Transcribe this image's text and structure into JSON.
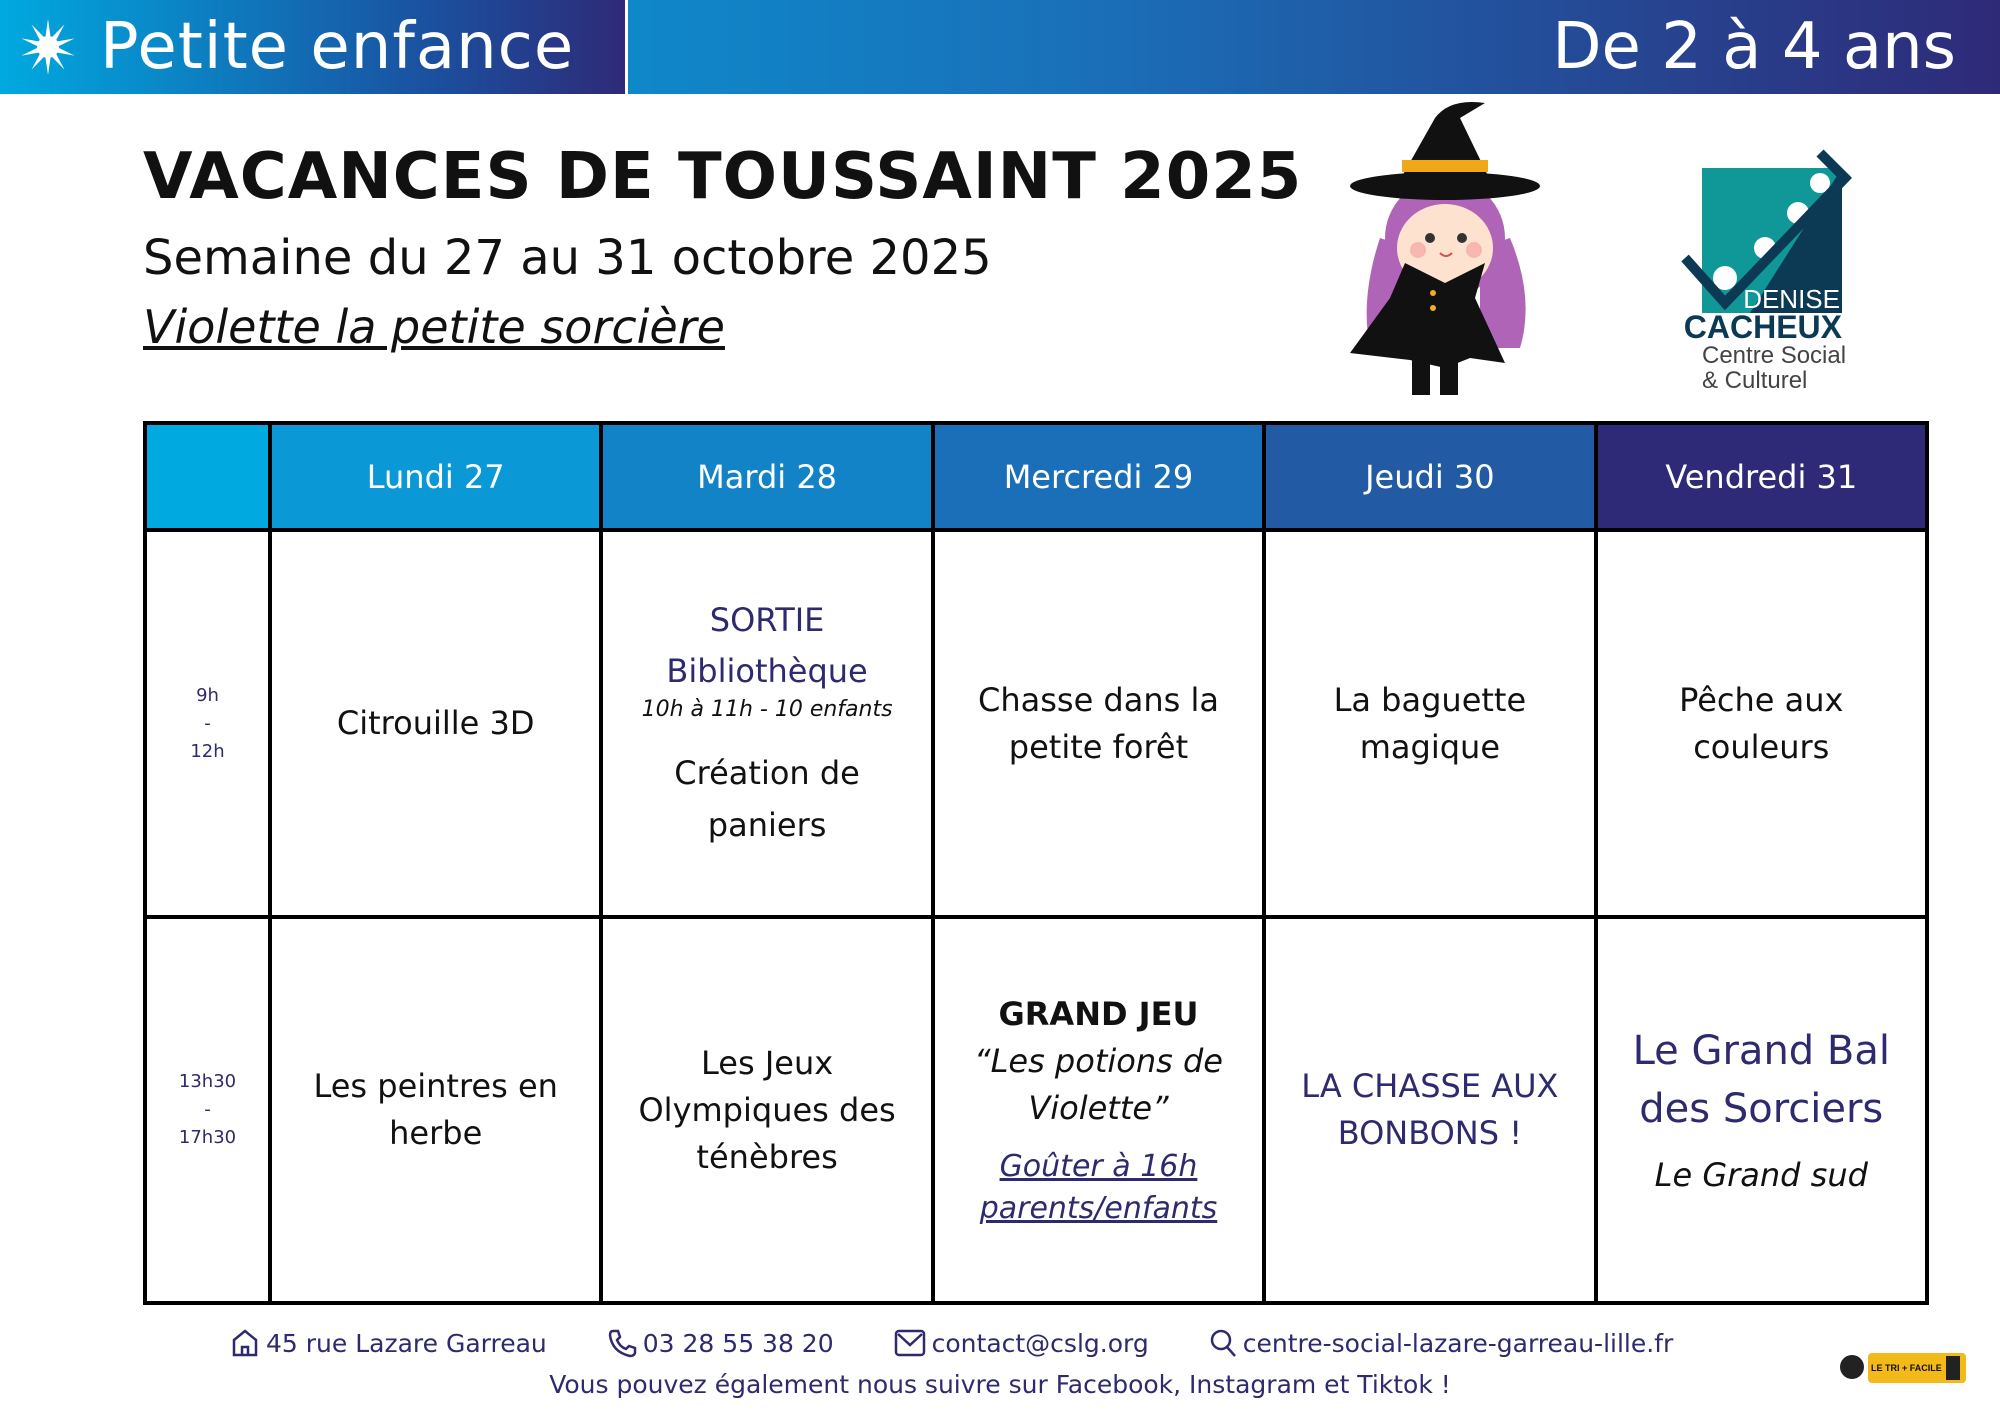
{
  "banner": {
    "left": "Petite enfance",
    "right": "De 2 à 4 ans",
    "icon": "star-icon",
    "colors": {
      "start": "#00a9e0",
      "end": "#2e2a78"
    }
  },
  "header": {
    "title": "VACANCES DE TOUSSAINT 2025",
    "subtitle": "Semaine du 27 au 31 octobre 2025",
    "theme": "Violette la petite sorcière"
  },
  "logo": {
    "line1": "DENISE",
    "line2": "CACHEUX",
    "line3": "Centre Social",
    "line4": "& Culturel"
  },
  "table": {
    "days": [
      "Lundi 27",
      "Mardi 28",
      "Mercredi 29",
      "Jeudi 30",
      "Vendredi 31"
    ],
    "morning": {
      "time": [
        "9h",
        "-",
        "12h"
      ],
      "mon": "Citrouille 3D",
      "tue": {
        "l1": "SORTIE",
        "l2": "Bibliothèque",
        "l3": "10h à 11h - 10 enfants",
        "l4": "Création de paniers"
      },
      "wed": "Chasse dans la petite forêt",
      "thu": "La baguette magique",
      "fri": "Pêche aux couleurs"
    },
    "afternoon": {
      "time": [
        "13h30",
        "-",
        "17h30"
      ],
      "mon": "Les peintres en herbe",
      "tue": "Les Jeux Olympiques des ténèbres",
      "wed": {
        "l1": "GRAND JEU",
        "l2": "“Les potions de Violette”",
        "l3": "Goûter à 16h parents/enfants"
      },
      "thu": "LA CHASSE AUX BONBONS !",
      "fri": {
        "l1": "Le Grand Bal des Sorciers",
        "l2": "Le Grand sud"
      }
    }
  },
  "footer": {
    "address": "45 rue Lazare Garreau",
    "phone": "03 28 55 38 20",
    "email": "contact@cslg.org",
    "website": "centre-social-lazare-garreau-lille.fr",
    "social": "Vous pouvez également nous suivre sur Facebook, Instagram et Tiktok !",
    "badge": "LE TRI + FACILE"
  }
}
